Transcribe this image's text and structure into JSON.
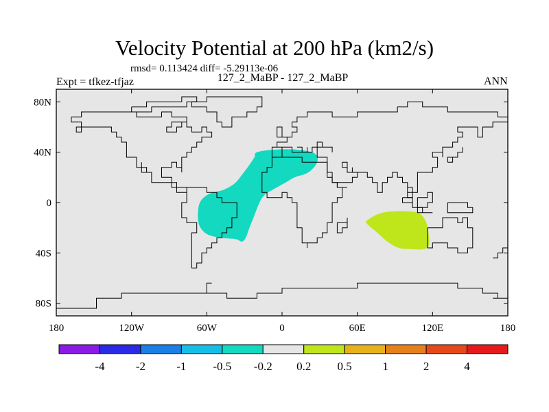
{
  "chart_data": {
    "type": "contour_map",
    "title": "Velocity Potential at 200 hPa (km2/s)",
    "stats_line": "rmsd= 0.113424 diff= -5.29113e-06",
    "cases_line": "127_2_MaBP - 127_2_MaBP",
    "left_label": "Expt = tfkez-tfjaz",
    "right_label": "ANN",
    "projection": "cylindrical equidistant",
    "xlim": [
      -180,
      180
    ],
    "ylim": [
      -90,
      90
    ],
    "x_ticks": [
      {
        "value": -180,
        "label": "180"
      },
      {
        "value": -120,
        "label": "120W"
      },
      {
        "value": -60,
        "label": "60W"
      },
      {
        "value": 0,
        "label": "0"
      },
      {
        "value": 60,
        "label": "60E"
      },
      {
        "value": 120,
        "label": "120E"
      },
      {
        "value": 180,
        "label": "180"
      }
    ],
    "y_ticks": [
      {
        "value": 80,
        "label": "80N"
      },
      {
        "value": 40,
        "label": "40N"
      },
      {
        "value": 0,
        "label": "0"
      },
      {
        "value": -40,
        "label": "40S"
      },
      {
        "value": -80,
        "label": "80S"
      }
    ],
    "background_color": "#e6e6e6",
    "coastline_color": "#000000",
    "colorbar": {
      "levels": [
        "-4",
        "-2",
        "-1",
        "-0.5",
        "-0.2",
        "0.2",
        "0.5",
        "1",
        "2",
        "4"
      ],
      "colors": [
        "#8a1ae6",
        "#2a2ae6",
        "#1a80e6",
        "#14bee6",
        "#12d9bf",
        "#e6e6e6",
        "#bfe61a",
        "#e6b21a",
        "#e6801a",
        "#e64a1a",
        "#e61a1a"
      ]
    },
    "shaded_regions": [
      {
        "name": "negative-anomaly-atlantic-americas",
        "range": "-0.5 to -0.2",
        "color": "#12d9bf",
        "outline": [
          [
            -20,
            40
          ],
          [
            -6,
            42
          ],
          [
            12,
            42
          ],
          [
            26,
            39
          ],
          [
            28,
            32
          ],
          [
            21,
            24
          ],
          [
            10,
            20
          ],
          [
            3,
            16
          ],
          [
            -6,
            11
          ],
          [
            -14,
            6
          ],
          [
            -18,
            0
          ],
          [
            -22,
            -10
          ],
          [
            -26,
            -20
          ],
          [
            -29,
            -28
          ],
          [
            -32,
            -31
          ],
          [
            -37,
            -29
          ],
          [
            -49,
            -28
          ],
          [
            -60,
            -25
          ],
          [
            -66,
            -18
          ],
          [
            -67,
            -8
          ],
          [
            -65,
            1
          ],
          [
            -58,
            7
          ],
          [
            -47,
            10
          ],
          [
            -38,
            15
          ],
          [
            -32,
            22
          ],
          [
            -26,
            30
          ],
          [
            -22,
            36
          ]
        ]
      },
      {
        "name": "positive-anomaly-indian-ocean",
        "range": "0.2 to 0.5",
        "color": "#bfe61a",
        "outline": [
          [
            68,
            -14
          ],
          [
            77,
            -9
          ],
          [
            88,
            -7
          ],
          [
            101,
            -7
          ],
          [
            110,
            -9
          ],
          [
            115,
            -16
          ],
          [
            117,
            -26
          ],
          [
            117,
            -34
          ],
          [
            113,
            -37
          ],
          [
            103,
            -37
          ],
          [
            93,
            -36
          ],
          [
            84,
            -31
          ],
          [
            76,
            -24
          ],
          [
            70,
            -19
          ],
          [
            67,
            -16
          ]
        ]
      }
    ]
  }
}
